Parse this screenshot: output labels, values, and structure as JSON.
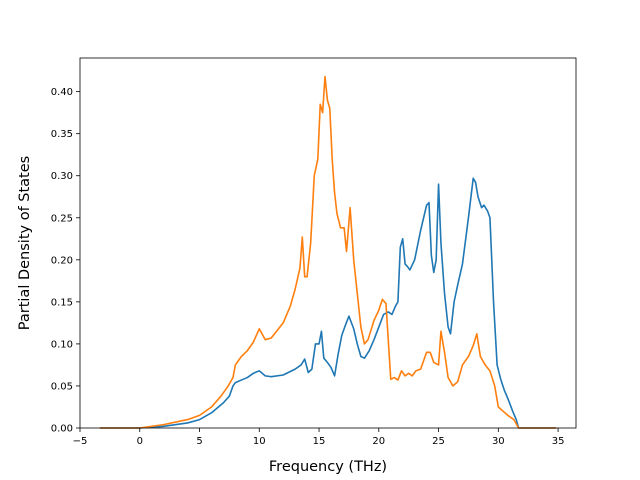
{
  "chart_data": {
    "type": "line",
    "title": "",
    "xlabel": "Frequency (THz)",
    "ylabel": "Partial Density of States",
    "xlim": [
      -5,
      36.5
    ],
    "ylim": [
      0,
      0.44
    ],
    "xticks": [
      -5,
      0,
      5,
      10,
      15,
      20,
      25,
      30,
      35
    ],
    "xtick_labels": [
      "−5",
      "0",
      "5",
      "10",
      "15",
      "20",
      "25",
      "30",
      "35"
    ],
    "yticks": [
      0,
      0.05,
      0.1,
      0.15,
      0.2,
      0.25,
      0.3,
      0.35,
      0.4
    ],
    "ytick_labels": [
      "0.00",
      "0.05",
      "0.10",
      "0.15",
      "0.20",
      "0.25",
      "0.30",
      "0.35",
      "0.40"
    ],
    "grid": false,
    "legend": false,
    "series": [
      {
        "color": "#1f77b4",
        "x": [
          -3.3,
          0,
          2,
          4,
          5,
          6,
          7,
          7.5,
          7.8,
          8,
          8.5,
          9,
          9.5,
          10,
          10.5,
          11,
          12,
          13,
          13.5,
          13.8,
          14.1,
          14.4,
          14.7,
          15.0,
          15.2,
          15.4,
          15.7,
          16.0,
          16.3,
          16.6,
          16.9,
          17.2,
          17.5,
          17.9,
          18.2,
          18.5,
          18.8,
          19.2,
          19.6,
          20.0,
          20.4,
          20.8,
          21.1,
          21.4,
          21.6,
          21.8,
          22.0,
          22.2,
          22.4,
          22.6,
          23.0,
          23.5,
          24.0,
          24.2,
          24.4,
          24.6,
          24.8,
          25.0,
          25.2,
          25.5,
          25.8,
          26.0,
          26.3,
          26.6,
          27.0,
          27.5,
          27.9,
          28.1,
          28.3,
          28.6,
          28.8,
          29.1,
          29.3,
          29.6,
          29.9,
          30.2,
          30.5,
          30.8,
          31.2,
          31.5,
          31.7,
          33,
          34.8
        ],
        "y": [
          0,
          0,
          0.002,
          0.006,
          0.01,
          0.018,
          0.03,
          0.038,
          0.05,
          0.054,
          0.057,
          0.06,
          0.065,
          0.068,
          0.062,
          0.061,
          0.063,
          0.07,
          0.075,
          0.082,
          0.066,
          0.07,
          0.1,
          0.1,
          0.115,
          0.083,
          0.078,
          0.072,
          0.062,
          0.088,
          0.11,
          0.122,
          0.133,
          0.118,
          0.1,
          0.085,
          0.083,
          0.092,
          0.105,
          0.12,
          0.135,
          0.138,
          0.135,
          0.145,
          0.15,
          0.215,
          0.225,
          0.195,
          0.192,
          0.188,
          0.2,
          0.235,
          0.265,
          0.268,
          0.205,
          0.185,
          0.2,
          0.29,
          0.22,
          0.16,
          0.12,
          0.112,
          0.15,
          0.17,
          0.195,
          0.25,
          0.297,
          0.292,
          0.275,
          0.262,
          0.265,
          0.258,
          0.25,
          0.15,
          0.075,
          0.058,
          0.045,
          0.035,
          0.02,
          0.01,
          0,
          0,
          0
        ]
      },
      {
        "color": "#ff7f0e",
        "x": [
          -3.3,
          0,
          2,
          4,
          5,
          6,
          6.8,
          7.4,
          7.8,
          8.0,
          8.5,
          9.0,
          9.5,
          10.0,
          10.5,
          11.0,
          12.0,
          12.6,
          13.0,
          13.4,
          13.6,
          13.8,
          14.0,
          14.3,
          14.6,
          14.9,
          15.1,
          15.3,
          15.5,
          15.7,
          15.9,
          16.1,
          16.3,
          16.5,
          16.8,
          17.1,
          17.3,
          17.6,
          17.9,
          18.2,
          18.5,
          18.8,
          19.1,
          19.6,
          20.0,
          20.3,
          20.6,
          21.0,
          21.3,
          21.6,
          21.9,
          22.2,
          22.5,
          22.8,
          23.1,
          23.5,
          24.0,
          24.3,
          24.6,
          25.0,
          25.2,
          25.5,
          25.8,
          26.2,
          26.6,
          27.0,
          27.5,
          27.9,
          28.2,
          28.5,
          28.9,
          29.3,
          29.7,
          30.0,
          30.4,
          30.8,
          31.3,
          31.7,
          33,
          34.8
        ],
        "y": [
          0,
          0,
          0.004,
          0.01,
          0.015,
          0.025,
          0.038,
          0.05,
          0.06,
          0.075,
          0.085,
          0.092,
          0.102,
          0.118,
          0.105,
          0.107,
          0.125,
          0.145,
          0.165,
          0.19,
          0.227,
          0.18,
          0.18,
          0.22,
          0.3,
          0.32,
          0.385,
          0.375,
          0.418,
          0.39,
          0.38,
          0.32,
          0.28,
          0.255,
          0.238,
          0.238,
          0.21,
          0.262,
          0.2,
          0.16,
          0.12,
          0.1,
          0.105,
          0.128,
          0.14,
          0.153,
          0.148,
          0.058,
          0.06,
          0.057,
          0.068,
          0.062,
          0.065,
          0.062,
          0.068,
          0.07,
          0.09,
          0.09,
          0.078,
          0.075,
          0.115,
          0.09,
          0.06,
          0.05,
          0.055,
          0.075,
          0.085,
          0.098,
          0.112,
          0.085,
          0.075,
          0.068,
          0.05,
          0.025,
          0.02,
          0.015,
          0.01,
          0,
          0,
          0
        ]
      }
    ]
  }
}
